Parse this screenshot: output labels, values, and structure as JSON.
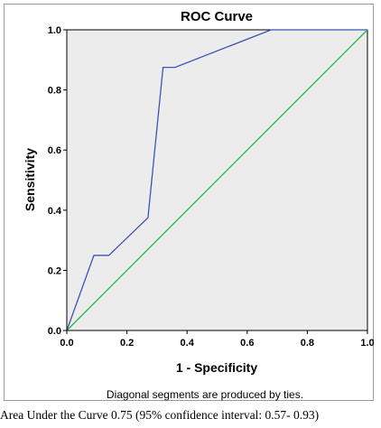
{
  "chart_data": {
    "type": "line",
    "title": "ROC Curve",
    "xlabel": "1 - Specificity",
    "ylabel": "Sensitivity",
    "xlim": [
      0,
      1
    ],
    "ylim": [
      0,
      1
    ],
    "x_ticks": [
      "0.0",
      "0.2",
      "0.4",
      "0.6",
      "0.8",
      "1.0"
    ],
    "y_ticks": [
      "0.0",
      "0.2",
      "0.4",
      "0.6",
      "0.8",
      "1.0"
    ],
    "grid": false,
    "series": [
      {
        "color": "#3b55b5",
        "points": [
          [
            0.0,
            0.0
          ],
          [
            0.09,
            0.25
          ],
          [
            0.14,
            0.25
          ],
          [
            0.27,
            0.375
          ],
          [
            0.32,
            0.875
          ],
          [
            0.36,
            0.875
          ],
          [
            0.68,
            1.0
          ],
          [
            1.0,
            1.0
          ]
        ]
      },
      {
        "color": "#22b54a",
        "points": [
          [
            0.0,
            0.0
          ],
          [
            1.0,
            1.0
          ]
        ]
      }
    ],
    "footnote": "Diagonal segments are produced by ties."
  },
  "caption": "Area Under the Curve 0.75 (95% confidence interval: 0.57- 0.93)",
  "colors": {
    "plot_background": "#ececec",
    "axis": "#000000"
  }
}
